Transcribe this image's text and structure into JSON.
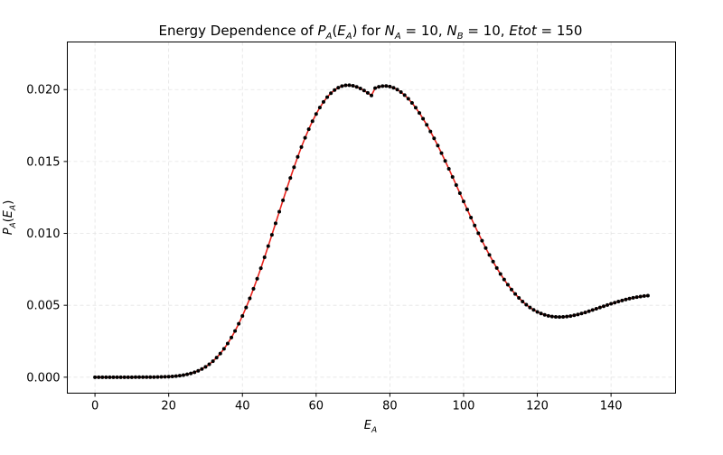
{
  "chart_data": {
    "type": "line",
    "title": {
      "part1": "Energy Dependence of ",
      "pa": "P",
      "pa_sub": "A",
      "arg_open": "(",
      "ea": "E",
      "ea_sub": "A",
      "arg_close": ")",
      "for": " for ",
      "na": "N",
      "na_sub": "A",
      "na_eq": " = 10,  ",
      "nb": "N",
      "nb_sub": "B",
      "nb_eq": " = 10,  ",
      "etot": "Etot",
      "etot_eq": " = 150"
    },
    "xlabel": {
      "main": "E",
      "sub": "A"
    },
    "ylabel": {
      "main": "P",
      "sub": "A",
      "open": "(",
      "arg": "E",
      "arg_sub": "A",
      "close": ")"
    },
    "xlim": [
      -7.5,
      157.5
    ],
    "ylim": [
      -0.00111,
      0.02331
    ],
    "x_ticks": [
      0,
      20,
      40,
      60,
      80,
      100,
      120,
      140
    ],
    "x_tick_labels": [
      "0",
      "20",
      "40",
      "60",
      "80",
      "100",
      "120",
      "140"
    ],
    "y_ticks": [
      0.0,
      0.005,
      0.01,
      0.015,
      0.02
    ],
    "y_tick_labels": [
      "0.000",
      "0.005",
      "0.010",
      "0.015",
      "0.020"
    ],
    "grid": true,
    "series": [
      {
        "style": "red-line-with-black-dots",
        "x_start": 0,
        "x_step": 1,
        "y": [
          0.0,
          0.0,
          0.0,
          0.0,
          0.0,
          0.0,
          0.0,
          0.0,
          0.0,
          0.0,
          0.0,
          1e-06,
          1e-06,
          2e-06,
          3e-06,
          5e-06,
          8e-06,
          1.2e-05,
          1.7e-05,
          2.6e-05,
          3.8e-05,
          5.5e-05,
          7.7e-05,
          0.000107,
          0.000147,
          0.000198,
          0.000263,
          0.000345,
          0.000446,
          0.000571,
          0.000722,
          0.000901,
          0.001113,
          0.001361,
          0.001647,
          0.001973,
          0.002342,
          0.002755,
          0.003212,
          0.003714,
          0.00426,
          0.004849,
          0.005478,
          0.006145,
          0.006846,
          0.007578,
          0.008335,
          0.009112,
          0.009903,
          0.010703,
          0.011504,
          0.012301,
          0.013087,
          0.013856,
          0.014602,
          0.01532,
          0.016003,
          0.016647,
          0.017248,
          0.0178,
          0.018302,
          0.018749,
          0.01914,
          0.019474,
          0.01975,
          0.019969,
          0.020131,
          0.020239,
          0.020295,
          0.020302,
          0.020265,
          0.020187,
          0.020075,
          0.019934,
          0.01977,
          0.019589,
          0.020102,
          0.020195,
          0.020243,
          0.020247,
          0.020207,
          0.020124,
          0.019997,
          0.019827,
          0.019615,
          0.019362,
          0.01907,
          0.01874,
          0.018375,
          0.017977,
          0.017548,
          0.017091,
          0.016609,
          0.016104,
          0.015581,
          0.015041,
          0.014489,
          0.013928,
          0.013361,
          0.012792,
          0.012223,
          0.011657,
          0.011098,
          0.010549,
          0.010012,
          0.00949,
          0.008985,
          0.0085,
          0.008036,
          0.007596,
          0.00718,
          0.006791,
          0.006429,
          0.006095,
          0.005789,
          0.005512,
          0.005263,
          0.005042,
          0.004849,
          0.004683,
          0.004543,
          0.004428,
          0.004337,
          0.004268,
          0.004221,
          0.004194,
          0.004185,
          0.004193,
          0.004216,
          0.004253,
          0.004302,
          0.004361,
          0.004429,
          0.004504,
          0.004585,
          0.00467,
          0.004757,
          0.004845,
          0.004933,
          0.00502,
          0.005104,
          0.005185,
          0.005262,
          0.005334,
          0.005401,
          0.005462,
          0.005517,
          0.005566,
          0.005608,
          0.005644,
          0.005673
        ]
      }
    ]
  }
}
